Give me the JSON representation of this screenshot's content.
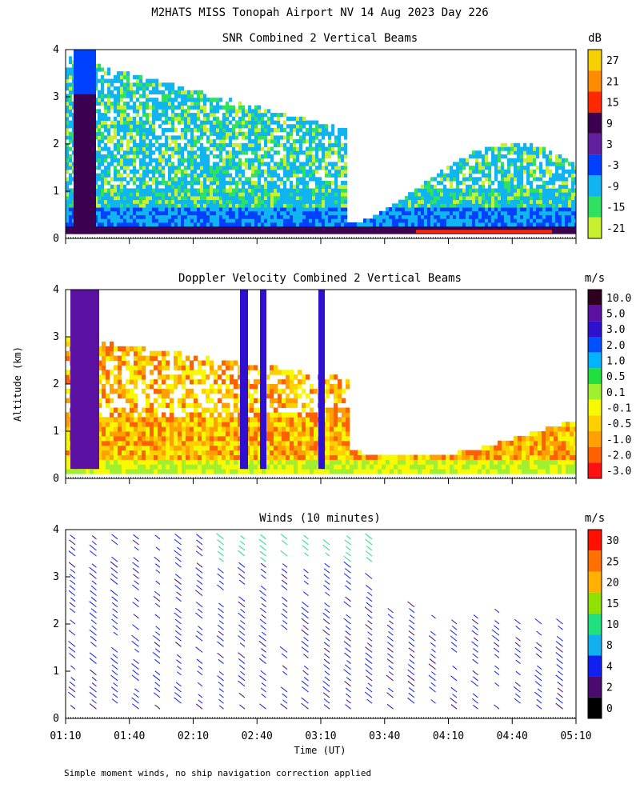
{
  "main_title": "M2HATS MISS Tonopah Airport NV  14 Aug 2023 Day 226",
  "y_axis_label": "Altitude (km)",
  "x_axis_label": "Time (UT)",
  "footnote": "Simple moment winds, no ship navigation correction applied",
  "panels": [
    {
      "title": "SNR Combined 2 Vertical Beams",
      "colorbar": {
        "unit": "dB",
        "labels": [
          "27",
          "21",
          "15",
          "9",
          "3",
          "-3",
          "-9",
          "-15",
          "-21"
        ],
        "colors": [
          "#f7d000",
          "#ff8c00",
          "#ff2800",
          "#3c0050",
          "#6020a0",
          "#0040ff",
          "#10b4f0",
          "#30e060",
          "#c8f030"
        ]
      }
    },
    {
      "title": "Doppler Velocity Combined 2 Vertical Beams",
      "colorbar": {
        "unit": "m/s",
        "labels": [
          "10.0",
          "5.0",
          "3.0",
          "2.0",
          "1.0",
          "0.5",
          "0.1",
          "-0.1",
          "-0.5",
          "-1.0",
          "-2.0",
          "-3.0"
        ],
        "colors": [
          "#300020",
          "#5a10a0",
          "#3010d0",
          "#0050ff",
          "#00b4ff",
          "#20e040",
          "#a0f030",
          "#f8f800",
          "#ffd000",
          "#ffa000",
          "#ff6000",
          "#ff1010"
        ]
      }
    },
    {
      "title": "Winds (10 minutes)",
      "colorbar": {
        "unit": "m/s",
        "labels": [
          "30",
          "25",
          "20",
          "15",
          "10",
          "8",
          "4",
          "2",
          "0"
        ],
        "colors": [
          "#ff1000",
          "#ff7000",
          "#ffb000",
          "#90e000",
          "#20e080",
          "#10b0f0",
          "#1020f0",
          "#4a0a70",
          "#000000"
        ]
      }
    }
  ],
  "chart_data": [
    {
      "type": "heatmap",
      "title": "SNR Combined 2 Vertical Beams",
      "xlabel": "Time (UT)",
      "ylabel": "Altitude (km)",
      "x_ticks": [
        "01:10",
        "01:40",
        "02:10",
        "02:40",
        "03:10",
        "03:40",
        "04:10",
        "04:40",
        "05:10"
      ],
      "y_ticks": [
        "0",
        "1",
        "2",
        "3",
        "4"
      ],
      "ylim": [
        0,
        4
      ],
      "x_range": [
        "01:10",
        "05:10"
      ],
      "units": "dB"
    },
    {
      "type": "heatmap",
      "title": "Doppler Velocity Combined 2 Vertical Beams",
      "xlabel": "Time (UT)",
      "ylabel": "Altitude (km)",
      "x_ticks": [
        "01:10",
        "01:40",
        "02:10",
        "02:40",
        "03:10",
        "03:40",
        "04:10",
        "04:40",
        "05:10"
      ],
      "y_ticks": [
        "0",
        "1",
        "2",
        "3",
        "4"
      ],
      "ylim": [
        0,
        4
      ],
      "x_range": [
        "01:10",
        "05:10"
      ],
      "units": "m/s"
    },
    {
      "type": "scatter",
      "title": "Winds (10 minutes)",
      "xlabel": "Time (UT)",
      "ylabel": "Altitude (km)",
      "x_ticks": [
        "01:10",
        "01:40",
        "02:10",
        "02:40",
        "03:10",
        "03:40",
        "04:10",
        "04:40",
        "05:10"
      ],
      "y_ticks": [
        "0",
        "1",
        "2",
        "3",
        "4"
      ],
      "ylim": [
        0,
        4
      ],
      "x_range": [
        "01:10",
        "05:10"
      ],
      "units": "m/s"
    }
  ]
}
